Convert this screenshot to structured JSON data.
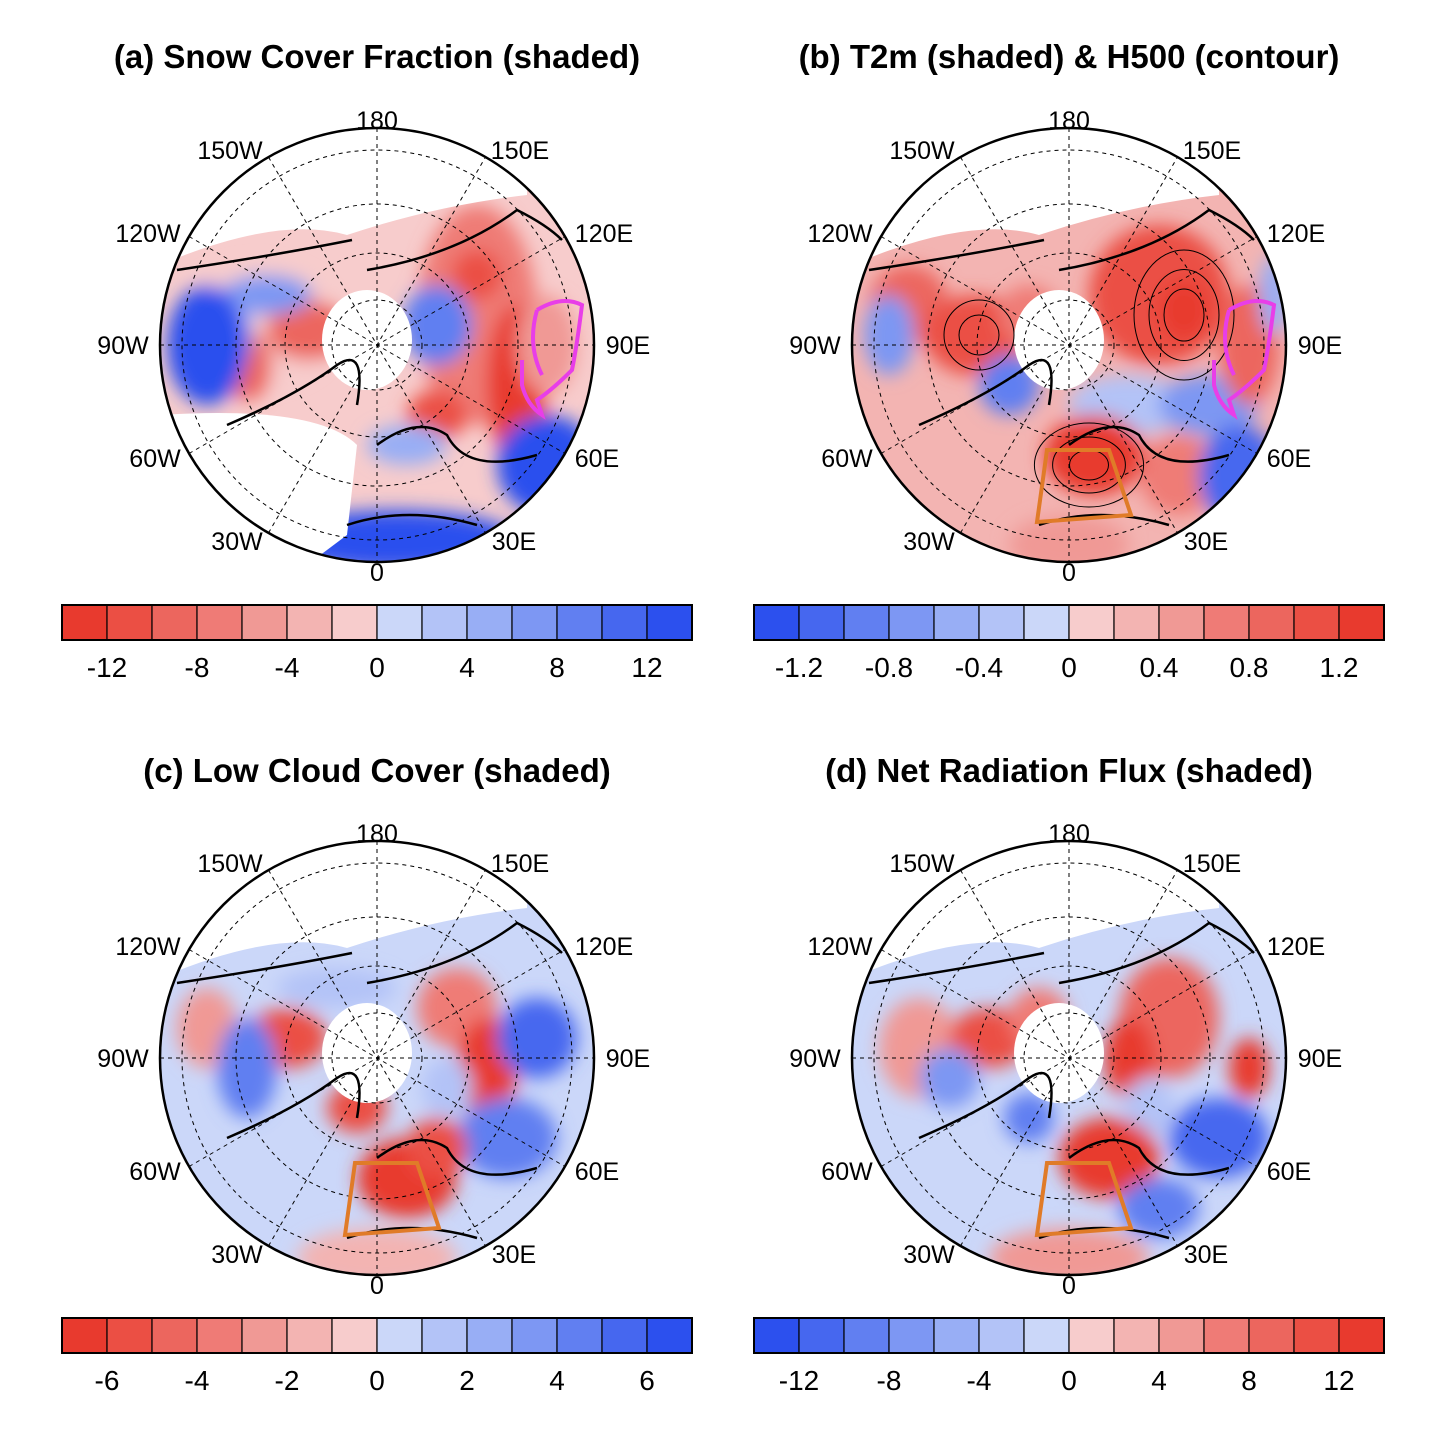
{
  "panels": [
    {
      "title": "(a) Snow Cover Fraction (shaded)",
      "colorbar": {
        "order": "red-to-blue",
        "ticks": [
          "-12",
          "-8",
          "-4",
          "0",
          "4",
          "8",
          "12"
        ]
      },
      "has_box": false,
      "has_magenta_contour": true,
      "has_h500_contours": false
    },
    {
      "title": "(b) T2m (shaded) & H500 (contour)",
      "colorbar": {
        "order": "blue-to-red",
        "ticks": [
          "-1.2",
          "-0.8",
          "-0.4",
          "0",
          "0.4",
          "0.8",
          "1.2"
        ]
      },
      "has_box": true,
      "has_magenta_contour": true,
      "has_h500_contours": true
    },
    {
      "title": "(c) Low Cloud Cover (shaded)",
      "colorbar": {
        "order": "red-to-blue",
        "ticks": [
          "-6",
          "-4",
          "-2",
          "0",
          "2",
          "4",
          "6"
        ]
      },
      "has_box": true,
      "has_magenta_contour": false,
      "has_h500_contours": false
    },
    {
      "title": "(d) Net Radiation Flux (shaded)",
      "colorbar": {
        "order": "blue-to-red",
        "ticks": [
          "-12",
          "-8",
          "-4",
          "0",
          "4",
          "8",
          "12"
        ]
      },
      "has_box": true,
      "has_magenta_contour": false,
      "has_h500_contours": false
    }
  ],
  "lon_labels": [
    "180",
    "150W",
    "150E",
    "120W",
    "120E",
    "90W",
    "90E",
    "60W",
    "60E",
    "30W",
    "30E",
    "0"
  ],
  "colors": {
    "reds": [
      "#e83a2e",
      "#eb4f44",
      "#ec665e",
      "#ef7b76",
      "#f09995",
      "#f3b4b2",
      "#f7cccc"
    ],
    "blues": [
      "#cbd7f9",
      "#b3c3f7",
      "#98aef5",
      "#7d97f3",
      "#617ff1",
      "#4667ef",
      "#2c50ee"
    ],
    "box": "#e07b28",
    "contour_magenta": "#e83ee8"
  }
}
